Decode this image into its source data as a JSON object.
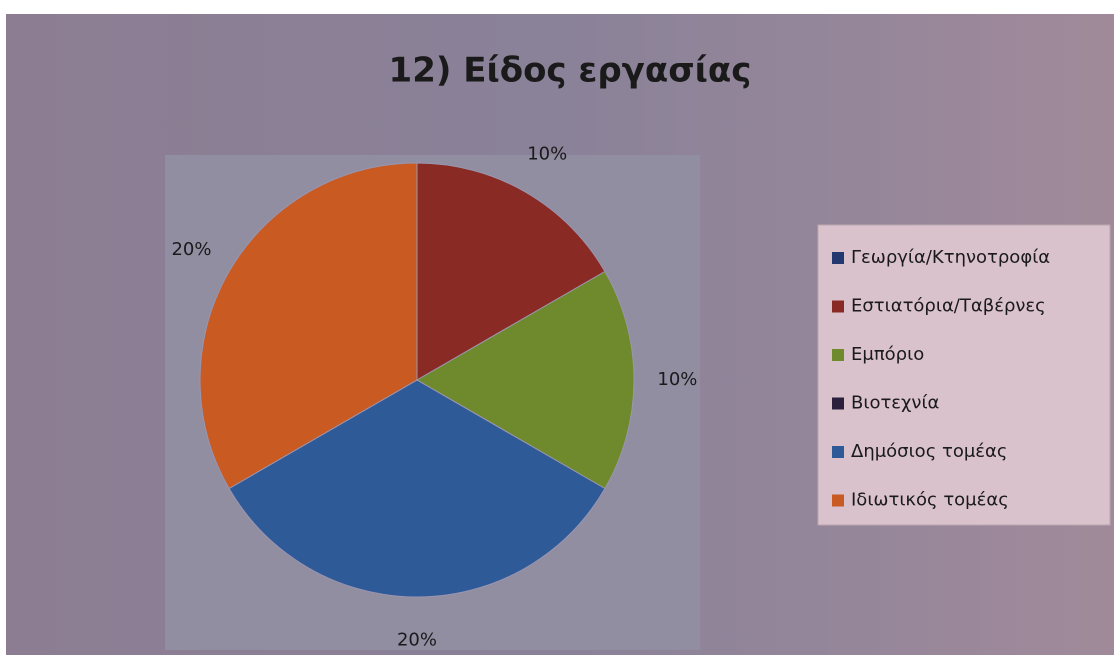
{
  "chart_data": {
    "type": "pie",
    "title": "12) Είδος εργασίας",
    "categories": [
      "Γεωργία/Κτηνοτροφία",
      "Εστιατόρια/Ταβέρνες",
      "Εμπόριο",
      "Βιοτεχνία",
      "Δημόσιος τομέας",
      "Ιδιωτικός τομέας"
    ],
    "values": [
      0,
      10,
      10,
      0,
      20,
      20
    ],
    "value_labels": [
      null,
      "10%",
      "10%",
      null,
      "20%",
      "20%"
    ],
    "colors": [
      "#22386e",
      "#8a2a24",
      "#6f8a2c",
      "#2b1f3c",
      "#2f5a98",
      "#c85a22"
    ],
    "legend": "right"
  }
}
